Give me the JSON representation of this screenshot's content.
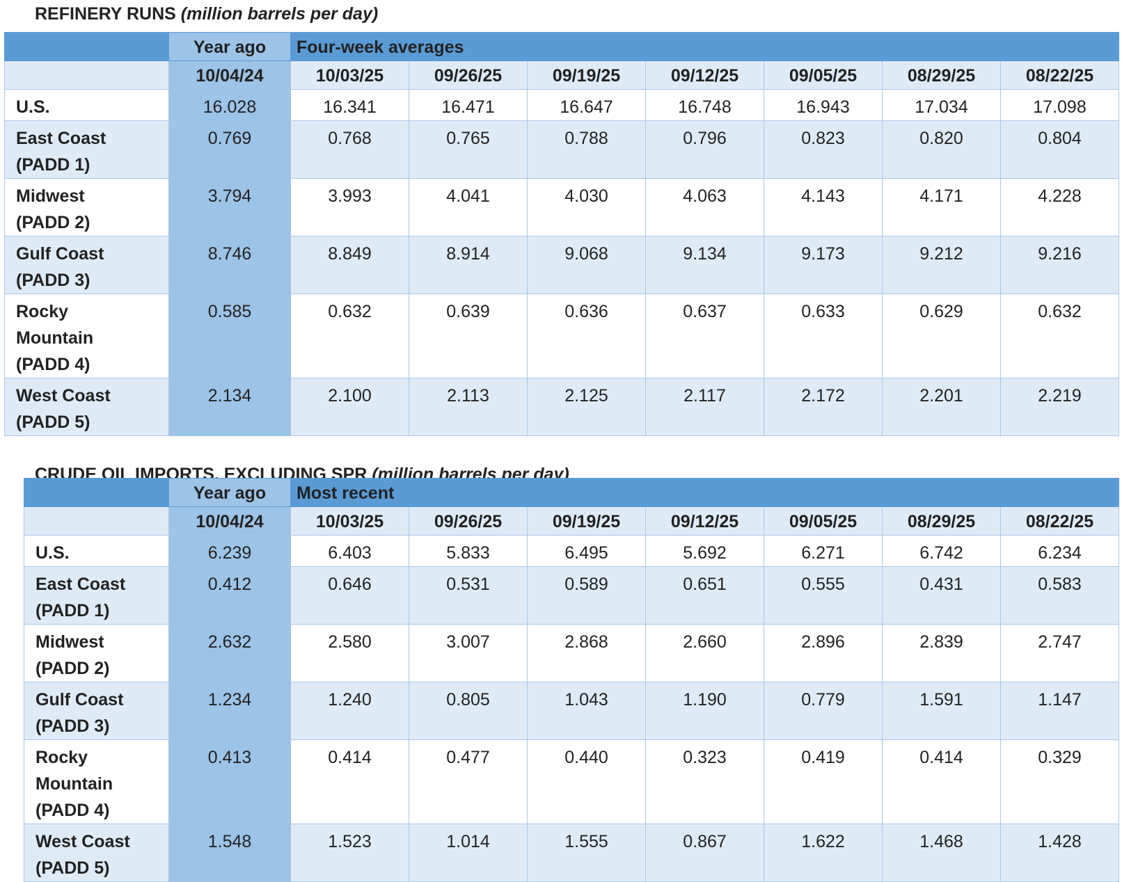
{
  "tables": [
    {
      "title": "REFINERY RUNS",
      "unit": "(million barrels per day)",
      "year_ago": "Year ago",
      "span": "Four-week averages",
      "dates": [
        "10/04/24",
        "10/03/25",
        "09/26/25",
        "09/19/25",
        "09/12/25",
        "09/05/25",
        "08/29/25",
        "08/22/25"
      ],
      "rows": [
        {
          "label": [
            "U.S."
          ],
          "values": [
            "16.028",
            "16.341",
            "16.471",
            "16.647",
            "16.748",
            "16.943",
            "17.034",
            "17.098"
          ]
        },
        {
          "label": [
            "East Coast",
            "(PADD 1)"
          ],
          "values": [
            "0.769",
            "0.768",
            "0.765",
            "0.788",
            "0.796",
            "0.823",
            "0.820",
            "0.804"
          ]
        },
        {
          "label": [
            "Midwest",
            "(PADD 2)"
          ],
          "values": [
            "3.794",
            "3.993",
            "4.041",
            "4.030",
            "4.063",
            "4.143",
            "4.171",
            "4.228"
          ]
        },
        {
          "label": [
            "Gulf Coast",
            "(PADD 3)"
          ],
          "values": [
            "8.746",
            "8.849",
            "8.914",
            "9.068",
            "9.134",
            "9.173",
            "9.212",
            "9.216"
          ]
        },
        {
          "label": [
            "Rocky",
            "Mountain",
            "(PADD 4)"
          ],
          "values": [
            "0.585",
            "0.632",
            "0.639",
            "0.636",
            "0.637",
            "0.633",
            "0.629",
            "0.632"
          ]
        },
        {
          "label": [
            "West Coast",
            "(PADD 5)"
          ],
          "values": [
            "2.134",
            "2.100",
            "2.113",
            "2.125",
            "2.117",
            "2.172",
            "2.201",
            "2.219"
          ]
        }
      ]
    },
    {
      "title": "CRUDE OIL IMPORTS, EXCLUDING SPR",
      "unit": "(million barrels per day)",
      "year_ago": "Year ago",
      "span": "Most recent",
      "dates": [
        "10/04/24",
        "10/03/25",
        "09/26/25",
        "09/19/25",
        "09/12/25",
        "09/05/25",
        "08/29/25",
        "08/22/25"
      ],
      "rows": [
        {
          "label": [
            "U.S."
          ],
          "values": [
            "6.239",
            "6.403",
            "5.833",
            "6.495",
            "5.692",
            "6.271",
            "6.742",
            "6.234"
          ]
        },
        {
          "label": [
            "East Coast",
            "(PADD 1)"
          ],
          "values": [
            "0.412",
            "0.646",
            "0.531",
            "0.589",
            "0.651",
            "0.555",
            "0.431",
            "0.583"
          ]
        },
        {
          "label": [
            "Midwest",
            "(PADD 2)"
          ],
          "values": [
            "2.632",
            "2.580",
            "3.007",
            "2.868",
            "2.660",
            "2.896",
            "2.839",
            "2.747"
          ]
        },
        {
          "label": [
            "Gulf Coast",
            "(PADD 3)"
          ],
          "values": [
            "1.234",
            "1.240",
            "0.805",
            "1.043",
            "1.190",
            "0.779",
            "1.591",
            "1.147"
          ]
        },
        {
          "label": [
            "Rocky",
            "Mountain",
            "(PADD 4)"
          ],
          "values": [
            "0.413",
            "0.414",
            "0.477",
            "0.440",
            "0.323",
            "0.419",
            "0.414",
            "0.329"
          ]
        },
        {
          "label": [
            "West Coast",
            "(PADD 5)"
          ],
          "values": [
            "1.548",
            "1.523",
            "1.014",
            "1.555",
            "0.867",
            "1.622",
            "1.468",
            "1.428"
          ]
        }
      ]
    }
  ]
}
